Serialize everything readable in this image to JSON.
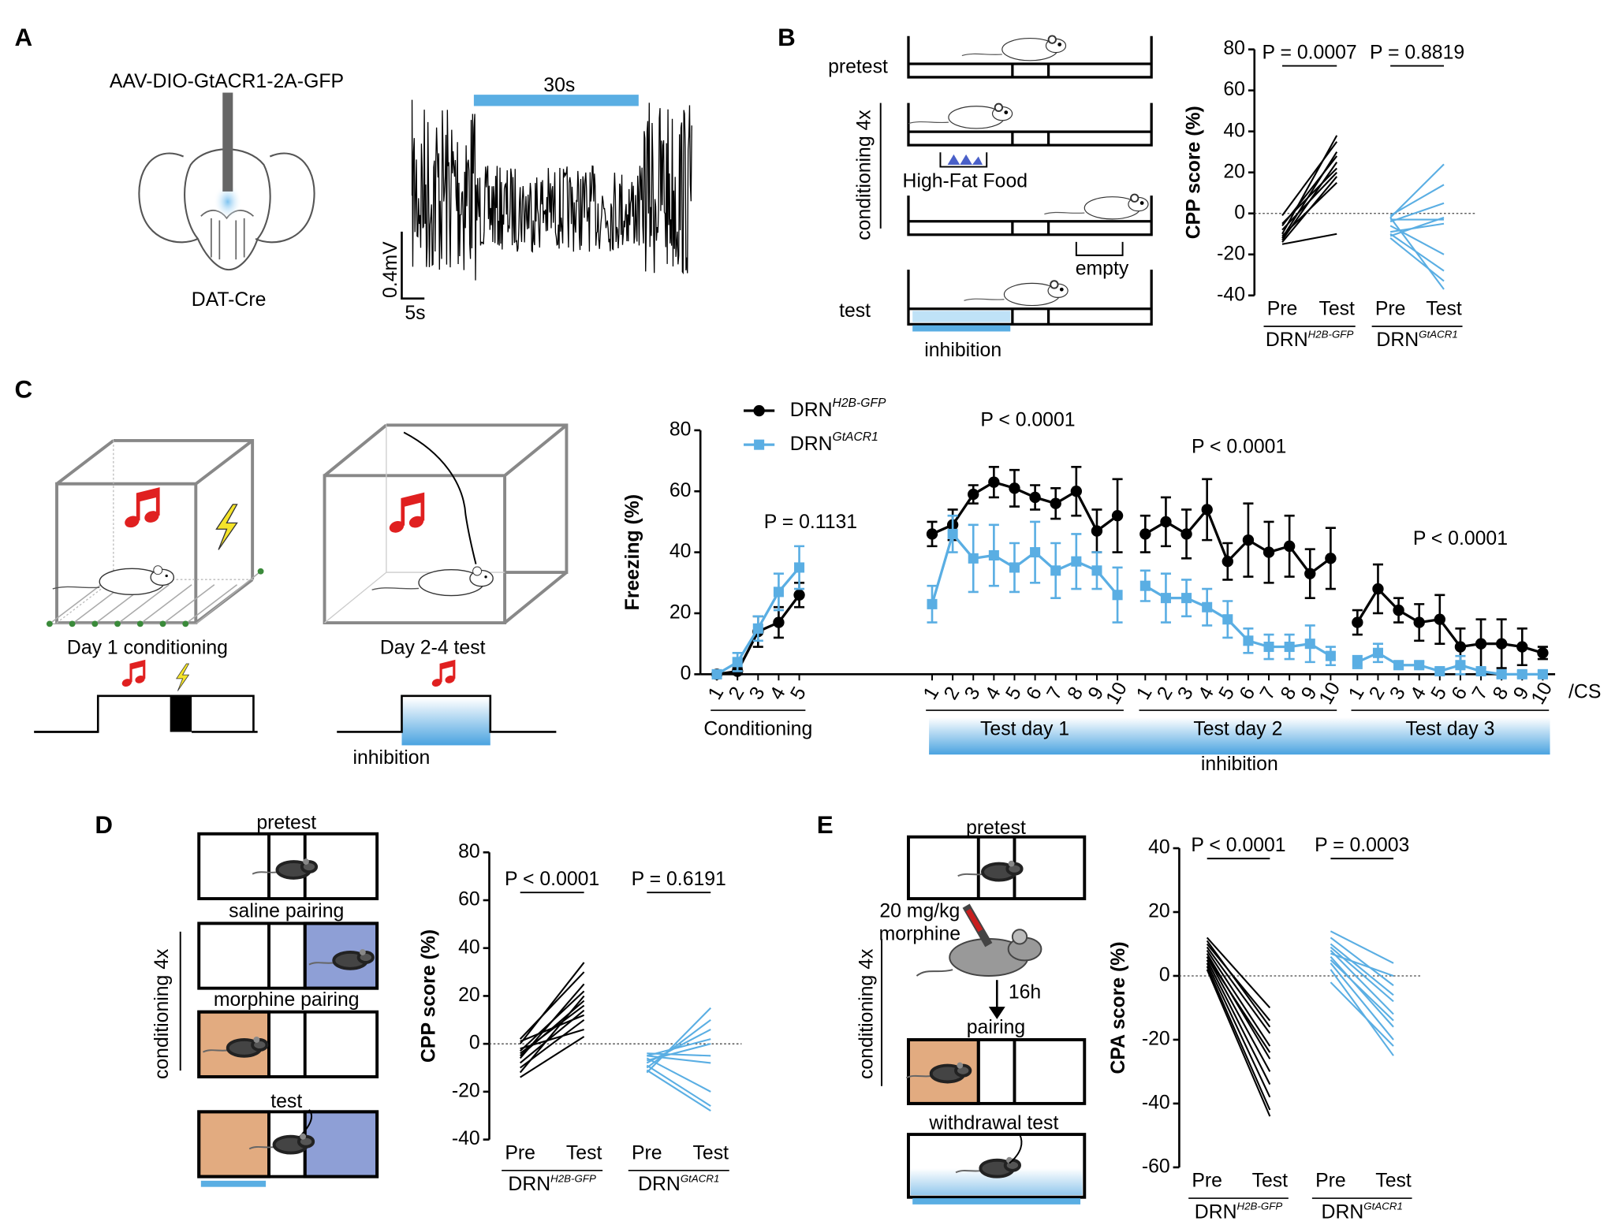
{
  "panel_labels": [
    "A",
    "B",
    "C",
    "D",
    "E"
  ],
  "panel_a": {
    "construct": "AAV-DIO-GtACR1-2A-GFP",
    "mouse_line": "DAT-Cre",
    "light_label": "30s",
    "scale_voltage": "0.4mV",
    "scale_time": "5s"
  },
  "panel_b": {
    "pretest": "pretest",
    "conditioning": "conditioning 4x",
    "food": "High-Fat Food",
    "empty": "empty",
    "test": "test",
    "inhibition": "inhibition"
  },
  "panel_c": {
    "conditioning_day": "Day 1 conditioning",
    "test_days": "Day 2-4 test",
    "inhibition": "inhibition"
  },
  "panel_d": {
    "pretest": "pretest",
    "saline": "saline pairing",
    "morphine": "morphine pairing",
    "test": "test",
    "conditioning": "conditioning 4x"
  },
  "panel_e": {
    "pretest": "pretest",
    "dose": "20 mg/kg",
    "drug": "morphine",
    "delay": "16h",
    "pairing": "pairing",
    "test": "withdrawal test",
    "conditioning": "conditioning 4x"
  },
  "chart_data": [
    {
      "type": "paired",
      "ylabel": "CPP score (%)",
      "ylim": [
        -40,
        80
      ],
      "yticks": [
        -40,
        -20,
        0,
        20,
        40,
        60,
        80
      ],
      "zero_line": true,
      "categories": [
        "Pre",
        "Test"
      ],
      "series": [
        {
          "name": "DRN",
          "name_sup": "H2B-GFP",
          "color": "#000000",
          "p_label": "P = 0.0007",
          "values": [
            [
              -1,
              35
            ],
            [
              -10,
              38
            ],
            [
              -12,
              30
            ],
            [
              -13,
              25
            ],
            [
              -8,
              20
            ],
            [
              -14,
              18
            ],
            [
              -5,
              22
            ],
            [
              -11,
              15
            ],
            [
              -15,
              -10
            ],
            [
              -6,
              28
            ]
          ]
        },
        {
          "name": "DRN",
          "name_sup": "GtACR1",
          "color": "#5aaee3",
          "p_label": "P = 0.8819",
          "values": [
            [
              -2,
              24
            ],
            [
              -1,
              14
            ],
            [
              -3,
              -3
            ],
            [
              -9,
              -5
            ],
            [
              -11,
              -2
            ],
            [
              -6,
              -20
            ],
            [
              -10,
              -28
            ],
            [
              -2,
              -37
            ],
            [
              -12,
              -33
            ],
            [
              -4,
              5
            ]
          ]
        }
      ]
    },
    {
      "type": "line",
      "ylabel": "Freezing (%)",
      "ylim": [
        0,
        80
      ],
      "yticks": [
        0,
        20,
        40,
        60,
        80
      ],
      "x_unit": "/CS",
      "band_label": "inhibition",
      "legend": "upper left",
      "x_groups": [
        {
          "name": "Conditioning",
          "categories": [
            "1",
            "2",
            "3",
            "4",
            "5"
          ],
          "p_label": "P = 0.1131",
          "inhibited": false
        },
        {
          "name": "Test day 1",
          "categories": [
            "1",
            "2",
            "3",
            "4",
            "5",
            "6",
            "7",
            "8",
            "9",
            "10"
          ],
          "p_label": "P < 0.0001",
          "inhibited": true
        },
        {
          "name": "Test day 2",
          "categories": [
            "1",
            "2",
            "3",
            "4",
            "5",
            "6",
            "7",
            "8",
            "9",
            "10"
          ],
          "p_label": "P < 0.0001",
          "inhibited": true
        },
        {
          "name": "Test day 3",
          "categories": [
            "1",
            "2",
            "3",
            "4",
            "5",
            "6",
            "7",
            "8",
            "9",
            "10"
          ],
          "p_label": "P < 0.0001",
          "inhibited": true
        }
      ],
      "series": [
        {
          "name": "DRN",
          "name_sup": "H2B-GFP",
          "color": "#000000",
          "marker": "circle",
          "values": [
            [
              0,
              1,
              14,
              17,
              26
            ],
            [
              46,
              49,
              59,
              63,
              61,
              58,
              56,
              60,
              47,
              52
            ],
            [
              46,
              50,
              46,
              54,
              37,
              44,
              40,
              42,
              33,
              38
            ],
            [
              17,
              28,
              21,
              17,
              18,
              9,
              10,
              10,
              9,
              7
            ]
          ],
          "errors": [
            [
              0,
              1,
              5,
              5,
              4
            ],
            [
              4,
              5,
              3,
              5,
              6,
              4,
              5,
              8,
              7,
              12
            ],
            [
              6,
              8,
              8,
              10,
              6,
              12,
              10,
              10,
              8,
              10
            ],
            [
              4,
              8,
              4,
              6,
              8,
              6,
              8,
              8,
              6,
              2
            ]
          ]
        },
        {
          "name": "DRN",
          "name_sup": "GtACR1",
          "color": "#5aaee3",
          "marker": "square",
          "values": [
            [
              0,
              4,
              15,
              27,
              35
            ],
            [
              23,
              46,
              38,
              39,
              35,
              40,
              34,
              37,
              34,
              26
            ],
            [
              29,
              25,
              25,
              22,
              18,
              11,
              9,
              9,
              10,
              6
            ],
            [
              4,
              7,
              3,
              3,
              1,
              3,
              1,
              0,
              0,
              0
            ]
          ],
          "errors": [
            [
              0,
              3,
              4,
              6,
              7
            ],
            [
              6,
              6,
              11,
              10,
              8,
              10,
              9,
              9,
              6,
              9
            ],
            [
              5,
              8,
              6,
              6,
              6,
              4,
              4,
              4,
              6,
              3
            ],
            [
              2,
              3,
              1,
              1,
              1,
              3,
              1,
              1,
              1,
              1
            ]
          ]
        }
      ]
    },
    {
      "type": "paired",
      "ylabel": "CPP score (%)",
      "ylim": [
        -40,
        80
      ],
      "yticks": [
        -40,
        -20,
        0,
        20,
        40,
        60,
        80
      ],
      "zero_line": true,
      "categories": [
        "Pre",
        "Test"
      ],
      "series": [
        {
          "name": "DRN",
          "name_sup": "H2B-GFP",
          "color": "#000000",
          "p_label": "P < 0.0001",
          "values": [
            [
              -14,
              3
            ],
            [
              -10,
              10
            ],
            [
              -8,
              14
            ],
            [
              -5,
              18
            ],
            [
              -3,
              22
            ],
            [
              0,
              34
            ],
            [
              2,
              30
            ],
            [
              -6,
              25
            ],
            [
              -12,
              20
            ],
            [
              -2,
              6
            ],
            [
              1,
              12
            ],
            [
              -4,
              16
            ]
          ]
        },
        {
          "name": "DRN",
          "name_sup": "GtACR1",
          "color": "#5aaee3",
          "p_label": "P = 0.6191",
          "values": [
            [
              -12,
              15
            ],
            [
              -10,
              10
            ],
            [
              -8,
              6
            ],
            [
              -5,
              2
            ],
            [
              -4,
              -5
            ],
            [
              -6,
              -20
            ],
            [
              -9,
              -26
            ],
            [
              -11,
              -28
            ],
            [
              -7,
              0
            ],
            [
              -5,
              -8
            ]
          ]
        }
      ]
    },
    {
      "type": "paired",
      "ylabel": "CPA score (%)",
      "ylim": [
        -60,
        40
      ],
      "yticks": [
        -60,
        -40,
        -20,
        0,
        20,
        40
      ],
      "zero_line": true,
      "categories": [
        "Pre",
        "Test"
      ],
      "series": [
        {
          "name": "DRN",
          "name_sup": "H2B-GFP",
          "color": "#000000",
          "p_label": "P < 0.0001",
          "values": [
            [
              12,
              -10
            ],
            [
              10,
              -14
            ],
            [
              9,
              -18
            ],
            [
              8,
              -22
            ],
            [
              7,
              -26
            ],
            [
              6,
              -30
            ],
            [
              5,
              -34
            ],
            [
              4,
              -38
            ],
            [
              3,
              -42
            ],
            [
              2,
              -44
            ],
            [
              11,
              -16
            ],
            [
              6,
              -24
            ]
          ]
        },
        {
          "name": "DRN",
          "name_sup": "GtACR1",
          "color": "#5aaee3",
          "p_label": "P = 0.0003",
          "values": [
            [
              14,
              4
            ],
            [
              12,
              -3
            ],
            [
              10,
              -6
            ],
            [
              8,
              -12
            ],
            [
              6,
              -16
            ],
            [
              4,
              -20
            ],
            [
              2,
              -25
            ],
            [
              -2,
              -22
            ],
            [
              9,
              -8
            ],
            [
              5,
              -14
            ],
            [
              7,
              0
            ]
          ]
        }
      ]
    }
  ]
}
